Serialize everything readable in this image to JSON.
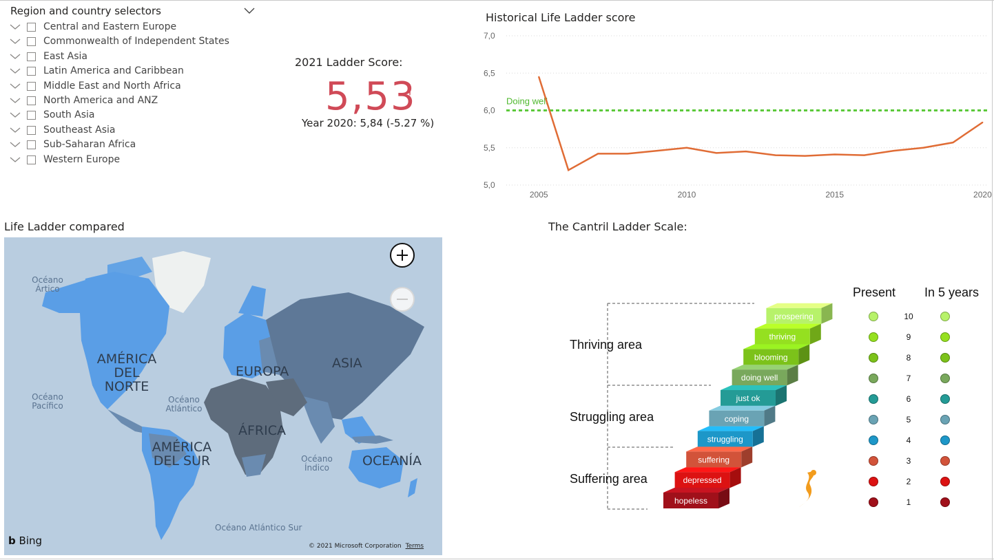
{
  "slicer": {
    "title": "Region and country selectors",
    "regions": [
      "Central and Eastern Europe",
      "Commonwealth of Independent States",
      "East Asia",
      "Latin America and Caribbean",
      "Middle East and North Africa",
      "North America and ANZ",
      "South Asia",
      "Southeast Asia",
      "Sub-Saharan Africa",
      "Western Europe"
    ]
  },
  "kpi": {
    "title": "2021 Ladder Score:",
    "value": "5,53",
    "flag": "!",
    "subtitle": "Year 2020: 5,84 (-5.27 %)"
  },
  "line_chart": {
    "title": "Historical Life Ladder score",
    "reference_label": "Doing well",
    "colors": {
      "line": "#e06c35",
      "reference": "#5cc93a",
      "grid": "#d8d8d8"
    }
  },
  "chart_data": {
    "type": "line",
    "title": "Historical Life Ladder score",
    "x": [
      2005,
      2006,
      2007,
      2008,
      2009,
      2010,
      2011,
      2012,
      2013,
      2014,
      2015,
      2016,
      2017,
      2018,
      2019,
      2020
    ],
    "series": [
      {
        "values": [
          6.45,
          5.2,
          5.42,
          5.42,
          5.46,
          5.5,
          5.43,
          5.45,
          5.4,
          5.39,
          5.41,
          5.4,
          5.46,
          5.5,
          5.57,
          5.84
        ]
      }
    ],
    "reference_line": {
      "label": "Doing well",
      "y": 6.0
    },
    "xticks": [
      "2005",
      "2010",
      "2015",
      "2020"
    ],
    "yticks": [
      "5,0",
      "5,5",
      "6,0",
      "6,5",
      "7,0"
    ],
    "xlim": [
      2003.9,
      2020.2
    ],
    "ylim": [
      5.0,
      7.0
    ],
    "grid": true
  },
  "map": {
    "title": "Life Ladder compared",
    "labels": {
      "oceano_artico": "Océano Ártico",
      "america_norte": "AMÉRICA DEL NORTE",
      "europa": "EUROPA",
      "asia": "ASIA",
      "oceano_pacifico": "Océano Pacífico",
      "oceano_atlantico": "Océano Atlántico",
      "africa": "ÁFRICA",
      "america_sur": "AMÉRICA DEL SUR",
      "oceano_indico": "Océano Índico",
      "oceania": "OCEANÍA",
      "oceano_atlantico_sur": "Océano Atlántico Sur"
    },
    "brand": "Bing",
    "copyright": "© 2021 Microsoft Corporation",
    "terms": "Terms",
    "zoom_in_icon": "plus-icon",
    "zoom_out_icon": "minus-icon",
    "colors": {
      "water": "#b9cde0",
      "land": "#eef1f0",
      "light_blue": "#5a9ee6",
      "mid": "#6a8bb0",
      "dark": "#5e6c7c"
    }
  },
  "cantril": {
    "title": "The Cantril Ladder Scale:",
    "areas": [
      "Thriving area",
      "Struggling area",
      "Suffering area"
    ],
    "header_present": "Present",
    "header_future": "In 5 years",
    "steps": [
      {
        "label": "prospering",
        "score": "10",
        "color": "#b7f26a"
      },
      {
        "label": "thriving",
        "score": "9",
        "color": "#95e020"
      },
      {
        "label": "blooming",
        "score": "8",
        "color": "#7cc21a"
      },
      {
        "label": "doing well",
        "score": "7",
        "color": "#79a85c"
      },
      {
        "label": "just ok",
        "score": "6",
        "color": "#249b96"
      },
      {
        "label": "coping",
        "score": "5",
        "color": "#6aa3b4"
      },
      {
        "label": "struggling",
        "score": "4",
        "color": "#1d97c8"
      },
      {
        "label": "suffering",
        "score": "3",
        "color": "#d2533a"
      },
      {
        "label": "depressed",
        "score": "2",
        "color": "#dc1212"
      },
      {
        "label": "hopeless",
        "score": "1",
        "color": "#a0101a"
      }
    ]
  }
}
